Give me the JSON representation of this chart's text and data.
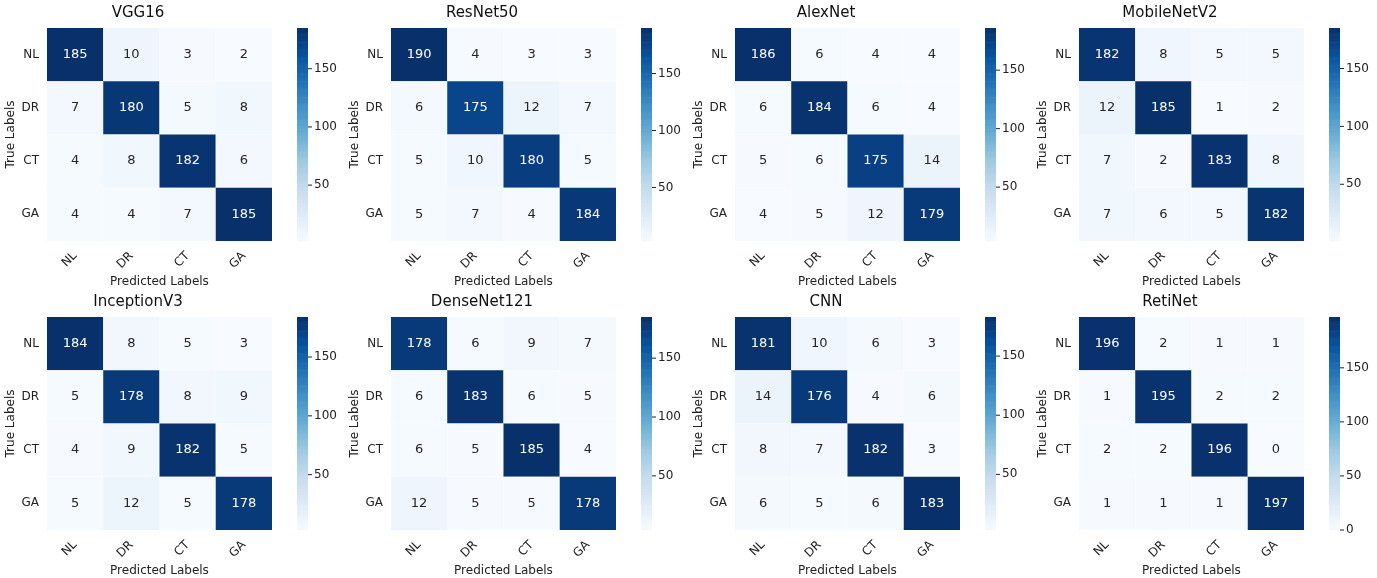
{
  "chart_data": [
    {
      "type": "heatmap",
      "title": "VGG16",
      "xlabel": "Predicted Labels",
      "ylabel": "True Labels",
      "categories": [
        "NL",
        "DR",
        "CT",
        "GA"
      ],
      "y_categories": [
        "NL",
        "DR",
        "CT",
        "GA"
      ],
      "cells": [
        [
          185,
          10,
          3,
          2
        ],
        [
          7,
          180,
          5,
          8
        ],
        [
          4,
          8,
          182,
          6
        ],
        [
          4,
          4,
          7,
          185
        ]
      ],
      "clim": [
        2,
        185
      ],
      "cticks": [
        50,
        100,
        150
      ],
      "data_labels": true
    },
    {
      "type": "heatmap",
      "title": "ResNet50",
      "xlabel": "Predicted Labels",
      "ylabel": "True Labels",
      "categories": [
        "NL",
        "DR",
        "CT",
        "GA"
      ],
      "y_categories": [
        "NL",
        "DR",
        "CT",
        "GA"
      ],
      "cells": [
        [
          190,
          4,
          3,
          3
        ],
        [
          6,
          175,
          12,
          7
        ],
        [
          5,
          10,
          180,
          5
        ],
        [
          5,
          7,
          4,
          184
        ]
      ],
      "clim": [
        3,
        190
      ],
      "cticks": [
        50,
        100,
        150
      ],
      "data_labels": true
    },
    {
      "type": "heatmap",
      "title": "AlexNet",
      "xlabel": "Predicted Labels",
      "ylabel": "True Labels",
      "categories": [
        "NL",
        "DR",
        "CT",
        "GA"
      ],
      "y_categories": [
        "NL",
        "DR",
        "CT",
        "GA"
      ],
      "cells": [
        [
          186,
          6,
          4,
          4
        ],
        [
          6,
          184,
          6,
          4
        ],
        [
          5,
          6,
          175,
          14
        ],
        [
          4,
          5,
          12,
          179
        ]
      ],
      "clim": [
        4,
        186
      ],
      "cticks": [
        50,
        100,
        150
      ],
      "data_labels": true
    },
    {
      "type": "heatmap",
      "title": "MobileNetV2",
      "xlabel": "Predicted Labels",
      "ylabel": "True Labels",
      "categories": [
        "NL",
        "DR",
        "CT",
        "GA"
      ],
      "y_categories": [
        "NL",
        "DR",
        "CT",
        "GA"
      ],
      "cells": [
        [
          182,
          8,
          5,
          5
        ],
        [
          12,
          185,
          1,
          2
        ],
        [
          7,
          2,
          183,
          8
        ],
        [
          7,
          6,
          5,
          182
        ]
      ],
      "clim": [
        1,
        185
      ],
      "cticks": [
        50,
        100,
        150
      ],
      "data_labels": true
    },
    {
      "type": "heatmap",
      "title": "InceptionV3",
      "xlabel": "Predicted Labels",
      "ylabel": "True Labels",
      "categories": [
        "NL",
        "DR",
        "CT",
        "GA"
      ],
      "y_categories": [
        "NL",
        "DR",
        "CT",
        "GA"
      ],
      "cells": [
        [
          184,
          8,
          5,
          3
        ],
        [
          5,
          178,
          8,
          9
        ],
        [
          4,
          9,
          182,
          5
        ],
        [
          5,
          12,
          5,
          178
        ]
      ],
      "clim": [
        3,
        184
      ],
      "cticks": [
        50,
        100,
        150
      ],
      "data_labels": true
    },
    {
      "type": "heatmap",
      "title": "DenseNet121",
      "xlabel": "Predicted Labels",
      "ylabel": "True Labels",
      "categories": [
        "NL",
        "DR",
        "CT",
        "GA"
      ],
      "y_categories": [
        "NL",
        "DR",
        "CT",
        "GA"
      ],
      "cells": [
        [
          178,
          6,
          9,
          7
        ],
        [
          6,
          183,
          6,
          5
        ],
        [
          6,
          5,
          185,
          4
        ],
        [
          12,
          5,
          5,
          178
        ]
      ],
      "clim": [
        4,
        185
      ],
      "cticks": [
        50,
        100,
        150
      ],
      "data_labels": true
    },
    {
      "type": "heatmap",
      "title": "CNN",
      "xlabel": "Predicted Labels",
      "ylabel": "True Labels",
      "categories": [
        "NL",
        "DR",
        "CT",
        "GA"
      ],
      "y_categories": [
        "NL",
        "DR",
        "CT",
        "GA"
      ],
      "cells": [
        [
          181,
          10,
          6,
          3
        ],
        [
          14,
          176,
          4,
          6
        ],
        [
          8,
          7,
          182,
          3
        ],
        [
          6,
          5,
          6,
          183
        ]
      ],
      "clim": [
        3,
        183
      ],
      "cticks": [
        50,
        100,
        150
      ],
      "data_labels": true
    },
    {
      "type": "heatmap",
      "title": "RetiNet",
      "xlabel": "Predicted Labels",
      "ylabel": "True Labels",
      "categories": [
        "NL",
        "DR",
        "CT",
        "GA"
      ],
      "y_categories": [
        "NL",
        "DR",
        "CT",
        "GA"
      ],
      "cells": [
        [
          196,
          2,
          1,
          1
        ],
        [
          1,
          195,
          2,
          2
        ],
        [
          2,
          2,
          196,
          0
        ],
        [
          1,
          1,
          1,
          197
        ]
      ],
      "clim": [
        0,
        197
      ],
      "cticks": [
        0,
        50,
        100,
        150
      ],
      "data_labels": true
    }
  ]
}
